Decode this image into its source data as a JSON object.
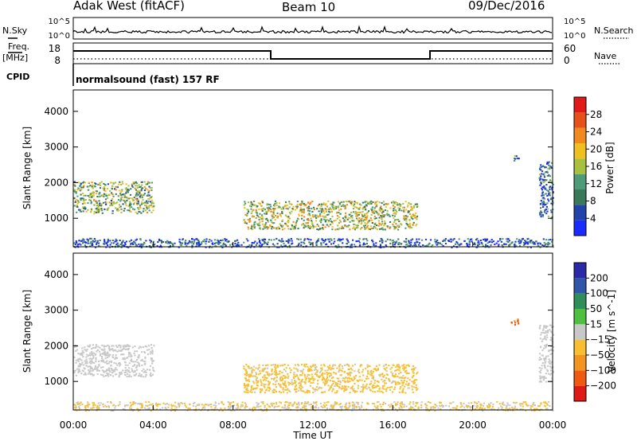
{
  "header": {
    "station": "Adak West (fitACF)",
    "beam": "Beam 10",
    "date": "09/Dec/2016"
  },
  "sky_panel": {
    "left_label": "N.Sky",
    "right_label": "N.Search",
    "tick_top": "10^5",
    "tick_bottom": "10^0"
  },
  "freq_panel": {
    "left_label_1": "Freq.",
    "left_label_2": "[MHz]",
    "right_label": "Nave",
    "left_ticks": [
      "18",
      "8"
    ],
    "right_ticks": [
      "60",
      "0"
    ],
    "cpid_label": "CPID",
    "cpid_value": "normalsound (fast) 157 RF"
  },
  "colors": {
    "power_scale": [
      "#1a2bff",
      "#2244aa",
      "#3a7a5a",
      "#4f9a78",
      "#a8c040",
      "#f0c020",
      "#f08a1c",
      "#e8501a",
      "#e01818"
    ],
    "velocity_scale": [
      "#e01818",
      "#f05a10",
      "#f49420",
      "#f8c030",
      "#c8c8c8",
      "#4fbf3f",
      "#2f8f5a",
      "#2f55a8",
      "#2a2aa8"
    ]
  },
  "chart_data": [
    {
      "type": "heatmap",
      "panel": "power",
      "ylabel": "Slant Range [km]",
      "yticks": [
        "1000",
        "2000",
        "3000",
        "4000"
      ],
      "ylim": [
        200,
        4600
      ],
      "xlim": [
        0,
        24
      ],
      "colorbar_label": "Power [dB]",
      "colorbar_ticks": [
        "4",
        "8",
        "12",
        "16",
        "20",
        "24",
        "28"
      ],
      "colorbar_range": [
        0,
        32
      ],
      "echo_regions": [
        {
          "t0": 0.0,
          "t1": 4.0,
          "r0": 1150,
          "r1": 2050,
          "level": 14
        },
        {
          "t0": 8.5,
          "t1": 17.2,
          "r0": 700,
          "r1": 1500,
          "level": 16
        },
        {
          "t0": 0.0,
          "t1": 24.0,
          "r0": 200,
          "r1": 450,
          "level": 6
        },
        {
          "t0": 21.9,
          "t1": 22.3,
          "r0": 2600,
          "r1": 2800,
          "level": 10
        },
        {
          "t0": 23.3,
          "t1": 24.0,
          "r0": 1000,
          "r1": 2600,
          "level": 8
        }
      ]
    },
    {
      "type": "heatmap",
      "panel": "velocity",
      "ylabel": "Slant Range [km]",
      "yticks": [
        "1000",
        "2000",
        "3000",
        "4000"
      ],
      "ylim": [
        200,
        4600
      ],
      "xlim": [
        0,
        24
      ],
      "xticks": [
        "00:00",
        "04:00",
        "08:00",
        "12:00",
        "16:00",
        "20:00",
        "00:00"
      ],
      "xlabel": "Time UT",
      "colorbar_label": "Velocity [m s^-1]",
      "colorbar_ticks": [
        "-200",
        "-100",
        "-50",
        "-15",
        "15",
        "50",
        "100",
        "200"
      ],
      "colorbar_range": [
        -250,
        250
      ],
      "echo_regions": [
        {
          "t0": 0.0,
          "t1": 4.0,
          "r0": 1150,
          "r1": 2050,
          "level": 0
        },
        {
          "t0": 8.5,
          "t1": 17.2,
          "r0": 700,
          "r1": 1500,
          "level": -50
        },
        {
          "t0": 0.0,
          "t1": 24.0,
          "r0": 200,
          "r1": 450,
          "level": -30
        },
        {
          "t0": 21.9,
          "t1": 22.3,
          "r0": 2600,
          "r1": 2800,
          "level": -150
        },
        {
          "t0": 23.3,
          "t1": 24.0,
          "r0": 1000,
          "r1": 2600,
          "level": 0
        }
      ]
    }
  ]
}
